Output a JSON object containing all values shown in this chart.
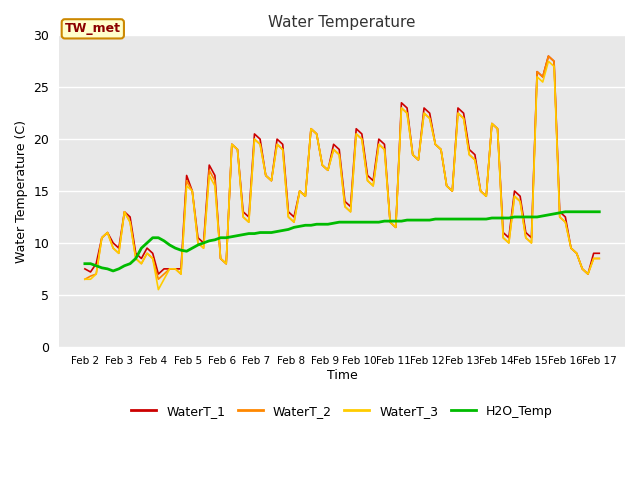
{
  "title": "Water Temperature",
  "xlabel": "Time",
  "ylabel": "Water Temperature (C)",
  "ylim": [
    0,
    30
  ],
  "yticks": [
    0,
    5,
    10,
    15,
    20,
    25,
    30
  ],
  "annotation_text": "TW_met",
  "annotation_color": "#8B0000",
  "annotation_bg": "#ffffcc",
  "annotation_border": "#cc8800",
  "plot_bg": "#e8e8e8",
  "x_labels": [
    "Feb 2",
    "Feb 3",
    "Feb 4",
    "Feb 5",
    "Feb 6",
    "Feb 7",
    "Feb 8",
    "Feb 9",
    "Feb 10",
    "Feb 11",
    "Feb 12",
    "Feb 13",
    "Feb 14",
    "Feb 15",
    "Feb 16",
    "Feb 17"
  ],
  "series_order": [
    "WaterT_1",
    "WaterT_2",
    "WaterT_3",
    "H2O_Temp"
  ],
  "series": {
    "WaterT_1": {
      "color": "#cc0000",
      "linewidth": 1.2,
      "values": [
        7.5,
        7.2,
        8.0,
        10.5,
        11.0,
        10.0,
        9.5,
        13.0,
        12.5,
        9.0,
        8.5,
        9.5,
        9.0,
        7.0,
        7.5,
        7.5,
        7.5,
        7.5,
        16.5,
        15.0,
        10.5,
        10.0,
        17.5,
        16.5,
        8.5,
        8.0,
        19.5,
        19.0,
        13.0,
        12.5,
        20.5,
        20.0,
        16.5,
        16.0,
        20.0,
        19.5,
        13.0,
        12.5,
        15.0,
        14.5,
        21.0,
        20.5,
        17.5,
        17.0,
        19.5,
        19.0,
        14.0,
        13.5,
        21.0,
        20.5,
        16.5,
        16.0,
        20.0,
        19.5,
        12.0,
        11.5,
        23.5,
        23.0,
        18.5,
        18.0,
        23.0,
        22.5,
        19.5,
        19.0,
        15.5,
        15.0,
        23.0,
        22.5,
        19.0,
        18.5,
        15.0,
        14.5,
        21.5,
        21.0,
        11.0,
        10.5,
        15.0,
        14.5,
        11.0,
        10.5,
        26.5,
        26.0,
        28.0,
        27.5,
        13.0,
        12.5,
        9.5,
        9.0,
        7.5,
        7.0,
        9.0,
        9.0
      ]
    },
    "WaterT_2": {
      "color": "#ff8800",
      "linewidth": 1.2,
      "values": [
        6.5,
        6.8,
        7.0,
        10.5,
        11.0,
        9.5,
        9.0,
        13.0,
        12.0,
        8.5,
        8.0,
        9.0,
        8.5,
        6.5,
        7.0,
        7.5,
        7.5,
        7.0,
        16.0,
        15.0,
        10.0,
        9.5,
        17.0,
        16.0,
        8.5,
        8.0,
        19.5,
        19.0,
        12.5,
        12.0,
        20.0,
        19.5,
        16.5,
        16.0,
        19.5,
        19.0,
        12.5,
        12.0,
        15.0,
        14.5,
        21.0,
        20.5,
        17.5,
        17.0,
        19.0,
        18.5,
        13.5,
        13.0,
        20.5,
        20.0,
        16.0,
        15.5,
        19.5,
        19.0,
        12.0,
        11.5,
        23.0,
        22.5,
        18.5,
        18.0,
        22.5,
        22.0,
        19.5,
        19.0,
        15.5,
        15.0,
        22.5,
        22.0,
        18.5,
        18.0,
        15.0,
        14.5,
        21.5,
        21.0,
        10.5,
        10.0,
        14.5,
        14.0,
        10.5,
        10.0,
        26.5,
        26.0,
        28.0,
        27.5,
        12.5,
        12.0,
        9.5,
        9.0,
        7.5,
        7.0,
        8.5,
        8.5
      ]
    },
    "WaterT_3": {
      "color": "#ffcc00",
      "linewidth": 1.2,
      "values": [
        6.5,
        6.5,
        7.0,
        10.5,
        11.0,
        9.5,
        9.0,
        13.0,
        12.0,
        8.5,
        8.0,
        9.0,
        8.5,
        5.5,
        6.5,
        7.5,
        7.5,
        7.0,
        15.5,
        15.0,
        10.0,
        9.5,
        16.5,
        15.5,
        8.5,
        8.0,
        19.5,
        19.0,
        12.5,
        12.0,
        20.0,
        19.5,
        16.5,
        16.0,
        19.5,
        19.0,
        12.5,
        12.0,
        15.0,
        14.5,
        21.0,
        20.5,
        17.5,
        17.0,
        19.0,
        18.5,
        13.5,
        13.0,
        20.5,
        20.0,
        16.0,
        15.5,
        19.5,
        19.0,
        12.0,
        11.5,
        23.0,
        22.5,
        18.5,
        18.0,
        22.5,
        22.0,
        19.5,
        19.0,
        15.5,
        15.0,
        22.5,
        22.0,
        18.5,
        18.0,
        15.0,
        14.5,
        21.5,
        21.0,
        10.5,
        10.0,
        14.5,
        14.0,
        10.5,
        10.0,
        26.0,
        25.5,
        27.5,
        27.0,
        12.5,
        12.0,
        9.5,
        9.0,
        7.5,
        7.0,
        8.5,
        8.5
      ]
    },
    "H2O_Temp": {
      "color": "#00bb00",
      "linewidth": 2.0,
      "values": [
        8.0,
        8.0,
        7.8,
        7.6,
        7.5,
        7.3,
        7.5,
        7.8,
        8.0,
        8.5,
        9.5,
        10.0,
        10.5,
        10.5,
        10.2,
        9.8,
        9.5,
        9.3,
        9.2,
        9.5,
        9.8,
        10.0,
        10.2,
        10.3,
        10.5,
        10.5,
        10.6,
        10.7,
        10.8,
        10.9,
        10.9,
        11.0,
        11.0,
        11.0,
        11.1,
        11.2,
        11.3,
        11.5,
        11.6,
        11.7,
        11.7,
        11.8,
        11.8,
        11.8,
        11.9,
        12.0,
        12.0,
        12.0,
        12.0,
        12.0,
        12.0,
        12.0,
        12.0,
        12.1,
        12.1,
        12.1,
        12.1,
        12.2,
        12.2,
        12.2,
        12.2,
        12.2,
        12.3,
        12.3,
        12.3,
        12.3,
        12.3,
        12.3,
        12.3,
        12.3,
        12.3,
        12.3,
        12.4,
        12.4,
        12.4,
        12.4,
        12.5,
        12.5,
        12.5,
        12.5,
        12.5,
        12.6,
        12.7,
        12.8,
        12.9,
        13.0,
        13.0,
        13.0,
        13.0,
        13.0,
        13.0,
        13.0
      ]
    }
  },
  "legend": [
    {
      "label": "WaterT_1",
      "color": "#cc0000"
    },
    {
      "label": "WaterT_2",
      "color": "#ff8800"
    },
    {
      "label": "WaterT_3",
      "color": "#ffcc00"
    },
    {
      "label": "H2O_Temp",
      "color": "#00bb00"
    }
  ]
}
